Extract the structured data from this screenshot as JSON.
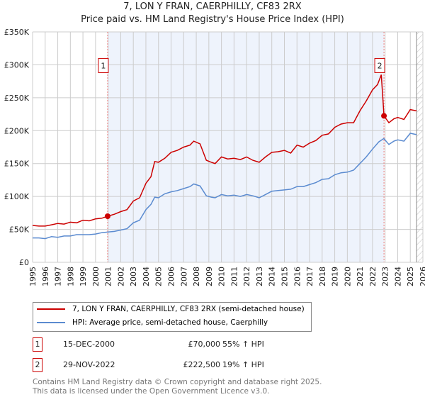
{
  "chart_data": {
    "type": "line",
    "title": "7, LON Y FRAN, CAERPHILLY, CF83 2RX",
    "subtitle": "Price paid vs. HM Land Registry's House Price Index (HPI)",
    "xlim": [
      1995,
      2026
    ],
    "ylim": [
      0,
      350000
    ],
    "yticks": [
      {
        "v": 0,
        "label": "£0"
      },
      {
        "v": 50000,
        "label": "£50K"
      },
      {
        "v": 100000,
        "label": "£100K"
      },
      {
        "v": 150000,
        "label": "£150K"
      },
      {
        "v": 200000,
        "label": "£200K"
      },
      {
        "v": 250000,
        "label": "£250K"
      },
      {
        "v": 300000,
        "label": "£300K"
      },
      {
        "v": 350000,
        "label": "£350K"
      }
    ],
    "xticks": [
      "1995",
      "1996",
      "1997",
      "1998",
      "1999",
      "2000",
      "2001",
      "2002",
      "2003",
      "2004",
      "2005",
      "2006",
      "2007",
      "2008",
      "2009",
      "2010",
      "2011",
      "2012",
      "2013",
      "2014",
      "2015",
      "2016",
      "2017",
      "2018",
      "2019",
      "2020",
      "2021",
      "2022",
      "2023",
      "2024",
      "2025",
      "2026"
    ],
    "grid": true,
    "forecast_start": 2025.5,
    "series": [
      {
        "name": "7, LON Y FRAN, CAERPHILLY, CF83 2RX (semi-detached house)",
        "color": "#cc0000",
        "x": [
          1995,
          1995.5,
          1996,
          1996.5,
          1997,
          1997.5,
          1998,
          1998.5,
          1999,
          1999.5,
          2000,
          2000.5,
          2000.96,
          2001.5,
          2002,
          2002.5,
          2003,
          2003.5,
          2004,
          2004.4,
          2004.7,
          2005,
          2005.5,
          2006,
          2006.5,
          2007,
          2007.5,
          2007.8,
          2008.3,
          2008.8,
          2009.2,
          2009.5,
          2010,
          2010.5,
          2011,
          2011.5,
          2012,
          2012.5,
          2013,
          2013.5,
          2014,
          2014.5,
          2015,
          2015.5,
          2016,
          2016.5,
          2017,
          2017.5,
          2018,
          2018.5,
          2019,
          2019.5,
          2020,
          2020.5,
          2021,
          2021.5,
          2022,
          2022.4,
          2022.7,
          2022.91,
          2023.3,
          2023.7,
          2024,
          2024.5,
          2025,
          2025.5
        ],
        "y": [
          56000,
          55000,
          55000,
          57000,
          59000,
          58000,
          61000,
          60000,
          64000,
          63000,
          66000,
          67000,
          70000,
          73000,
          77000,
          80000,
          93000,
          98000,
          120000,
          130000,
          153000,
          152000,
          158000,
          167000,
          170000,
          175000,
          178000,
          184000,
          180000,
          155000,
          152000,
          150000,
          160000,
          157000,
          158000,
          156000,
          160000,
          155000,
          152000,
          160000,
          167000,
          168000,
          170000,
          166000,
          178000,
          175000,
          181000,
          185000,
          193000,
          195000,
          205000,
          210000,
          212000,
          212000,
          230000,
          245000,
          262000,
          270000,
          285000,
          222500,
          212000,
          218000,
          220000,
          217000,
          232000,
          230000
        ]
      },
      {
        "name": "HPI: Average price, semi-detached house, Caerphilly",
        "color": "#5b8bd0",
        "x": [
          1995,
          1995.5,
          1996,
          1996.5,
          1997,
          1997.5,
          1998,
          1998.5,
          1999,
          1999.5,
          2000,
          2000.5,
          2001,
          2001.5,
          2002,
          2002.5,
          2003,
          2003.5,
          2004,
          2004.4,
          2004.7,
          2005,
          2005.5,
          2006,
          2006.5,
          2007,
          2007.5,
          2007.8,
          2008.3,
          2008.8,
          2009.2,
          2009.5,
          2010,
          2010.5,
          2011,
          2011.5,
          2012,
          2012.5,
          2013,
          2013.5,
          2014,
          2014.5,
          2015,
          2015.5,
          2016,
          2016.5,
          2017,
          2017.5,
          2018,
          2018.5,
          2019,
          2019.5,
          2020,
          2020.5,
          2021,
          2021.5,
          2022,
          2022.5,
          2022.9,
          2023.3,
          2023.7,
          2024,
          2024.5,
          2025,
          2025.5
        ],
        "y": [
          37000,
          37000,
          36000,
          39000,
          38000,
          40000,
          40000,
          42000,
          42000,
          42000,
          43000,
          45000,
          46000,
          47000,
          49000,
          51000,
          60000,
          64000,
          80000,
          88000,
          99000,
          98000,
          104000,
          107000,
          109000,
          112000,
          115000,
          119000,
          116000,
          101000,
          99000,
          98000,
          103000,
          101000,
          102000,
          100000,
          103000,
          101000,
          98000,
          103000,
          108000,
          109000,
          110000,
          111000,
          115000,
          115000,
          118000,
          121000,
          126000,
          127000,
          133000,
          136000,
          137000,
          140000,
          150000,
          160000,
          172000,
          183000,
          188000,
          179000,
          184000,
          186000,
          184000,
          196000,
          194000
        ]
      }
    ],
    "sales": [
      {
        "n": "1",
        "date": "15-DEC-2000",
        "price": "£70,000",
        "hpi": "55% ↑ HPI",
        "x": 2000.96,
        "y": 70000
      },
      {
        "n": "2",
        "date": "29-NOV-2022",
        "price": "£222,500",
        "hpi": "19% ↑ HPI",
        "x": 2022.91,
        "y": 222500
      }
    ]
  },
  "footer": {
    "line1": "Contains HM Land Registry data © Crown copyright and database right 2025.",
    "line2": "This data is licensed under the Open Government Licence v3.0."
  }
}
